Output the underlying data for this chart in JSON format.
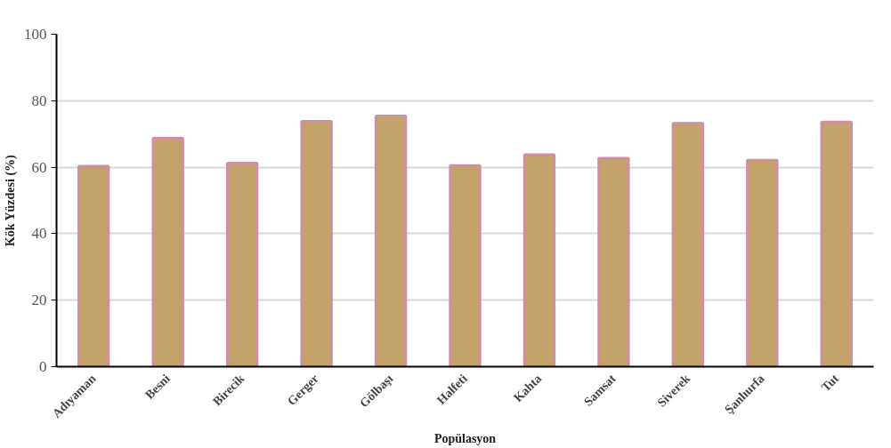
{
  "chart_data": {
    "type": "bar",
    "xlabel": "Popülasyon",
    "ylabel": "Kök Yüzdesi (%)",
    "categories": [
      "Adıyaman",
      "Besni",
      "Birecik",
      "Gerger",
      "Gölbaşı",
      "Halfeti",
      "Kahta",
      "Samsat",
      "Siverek",
      "Şanlıurfa",
      "Tut"
    ],
    "values": [
      60.3,
      68.7,
      61.2,
      73.8,
      75.4,
      60.5,
      63.8,
      62.7,
      73.2,
      62.1,
      73.6
    ],
    "color": "#c4a36a",
    "ylim": [
      0,
      100
    ],
    "yticks": [
      0,
      20,
      40,
      60,
      80,
      100
    ],
    "grid": "y"
  }
}
